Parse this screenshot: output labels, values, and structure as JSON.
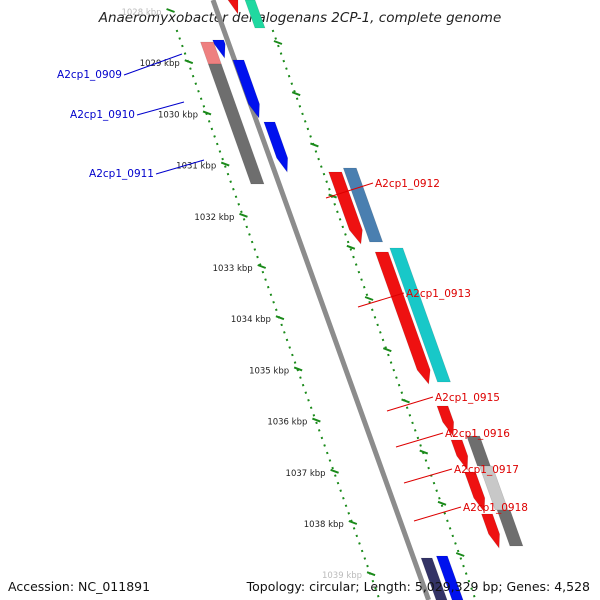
{
  "title": "Anaeromyxobacter dehalogenans 2CP-1, complete genome",
  "footer": {
    "accession": "Accession: NC_011891",
    "topology": "Topology: circular; Length: 5,029,329 bp; Genes: 4,528"
  },
  "scale": {
    "ticks": [
      "1028 kbp",
      "1029 kbp",
      "1030 kbp",
      "1031 kbp",
      "1032 kbp",
      "1033 kbp",
      "1034 kbp",
      "1035 kbp",
      "1036 kbp",
      "1037 kbp",
      "1038 kbp",
      "1039 kbp"
    ]
  },
  "genes": {
    "left": [
      {
        "name": "A2cp1_0909",
        "color": "#0000cc"
      },
      {
        "name": "A2cp1_0910",
        "color": "#0000cc"
      },
      {
        "name": "A2cp1_0911",
        "color": "#0000cc"
      }
    ],
    "right": [
      {
        "name": "A2cp1_0912",
        "color": "#dd0000"
      },
      {
        "name": "A2cp1_0913",
        "color": "#dd0000"
      },
      {
        "name": "A2cp1_0915",
        "color": "#dd0000"
      },
      {
        "name": "A2cp1_0916",
        "color": "#dd0000"
      },
      {
        "name": "A2cp1_0917",
        "color": "#dd0000"
      },
      {
        "name": "A2cp1_0918",
        "color": "#dd0000"
      }
    ]
  },
  "colors": {
    "backbone": "#8c8c8c",
    "tick_green": "#1a8a1a",
    "forward_gene": "#ee1111",
    "reverse_gene": "#0011ee",
    "gray_feature": "#6e6e6e",
    "steel_feature": "#4a7fb0",
    "cyan_feature": "#18c8c8",
    "pink_feature": "#ee8080"
  }
}
